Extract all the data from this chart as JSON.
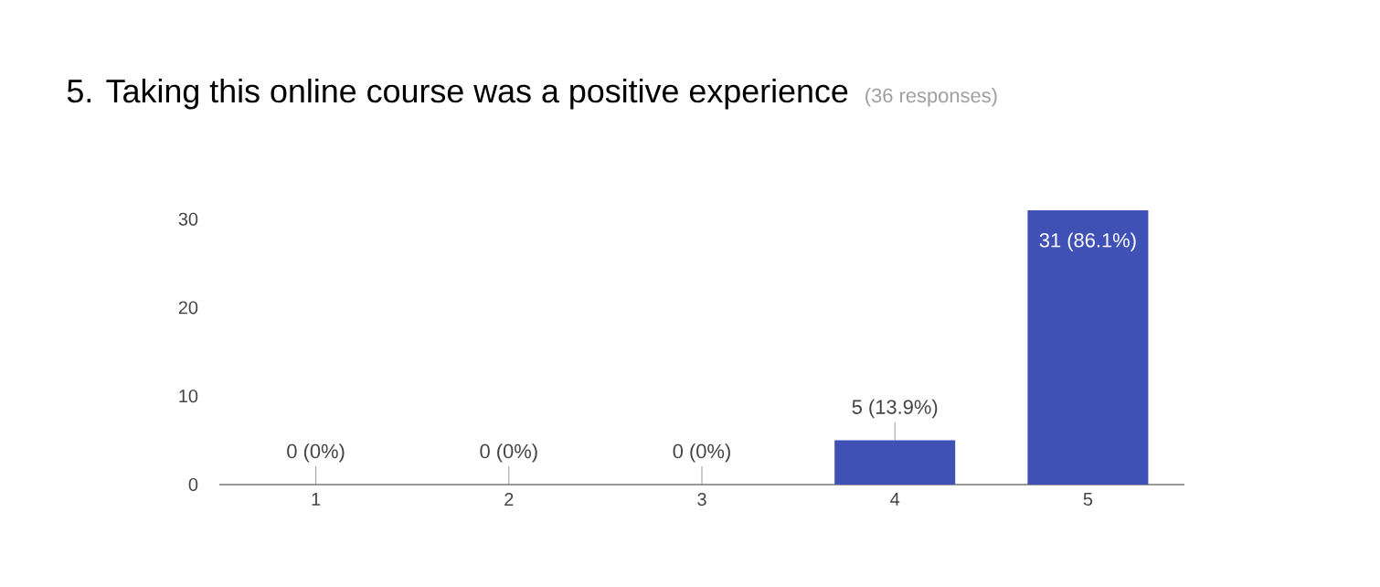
{
  "chart_data": {
    "type": "bar",
    "title": "5. Taking this online course was a positive experience",
    "subtitle": "(36 responses)",
    "categories": [
      "1",
      "2",
      "3",
      "4",
      "5"
    ],
    "values": [
      0,
      0,
      0,
      5,
      31
    ],
    "value_labels": [
      "0 (0%)",
      "0 (0%)",
      "0 (0%)",
      "5 (13.9%)",
      "31 (86.1%)"
    ],
    "color": "#3f51b5",
    "ylim": [
      0,
      31
    ],
    "yticks": [
      0,
      10,
      20,
      30
    ]
  }
}
